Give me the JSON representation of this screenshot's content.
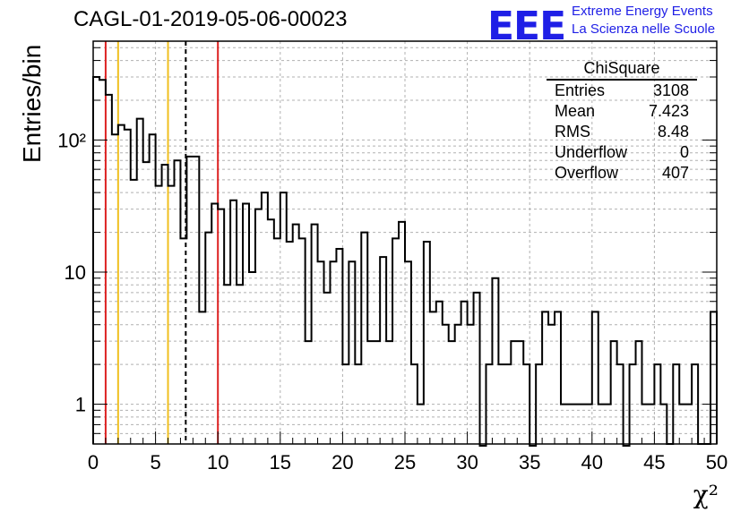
{
  "title": "CAGL-01-2019-05-06-00023",
  "logo": {
    "mark": "EEE",
    "line1": "Extreme Energy Events",
    "line2": "La Scienza nelle Scuole",
    "color": "#1f1fe6"
  },
  "stats": {
    "name": "ChiSquare",
    "rows": [
      {
        "label": "Entries",
        "value": "3108"
      },
      {
        "label": "Mean",
        "value": "7.423"
      },
      {
        "label": "RMS",
        "value": "8.48"
      },
      {
        "label": "Underflow",
        "value": "0"
      },
      {
        "label": "Overflow",
        "value": "407"
      }
    ]
  },
  "chart_data": {
    "type": "bar",
    "histogram": true,
    "title": "CAGL-01-2019-05-06-00023",
    "xlabel": "χ²",
    "ylabel": "Entries/bin",
    "xlim": [
      0,
      50
    ],
    "ylim": [
      0.5,
      560
    ],
    "log_y": true,
    "grid": true,
    "bin_width": 0.5,
    "xticks": [
      0,
      5,
      10,
      15,
      20,
      25,
      30,
      35,
      40,
      45,
      50
    ],
    "yticks": [
      {
        "value": 1,
        "label": "1"
      },
      {
        "value": 10,
        "label": "10"
      },
      {
        "value": 100,
        "label": "10²"
      }
    ],
    "values": [
      300,
      285,
      220,
      110,
      130,
      120,
      50,
      145,
      68,
      110,
      45,
      65,
      45,
      70,
      18,
      75,
      75,
      5,
      20,
      33,
      30,
      8,
      35,
      8,
      33,
      10,
      30,
      40,
      25,
      18,
      40,
      17,
      23,
      18,
      3,
      23,
      12,
      7,
      12,
      15,
      2,
      12,
      2,
      20,
      3,
      3,
      13,
      3,
      18,
      24,
      12,
      2,
      1,
      17,
      5,
      6,
      4,
      3,
      4,
      6,
      4,
      7,
      0,
      2,
      9,
      2,
      2,
      3,
      3,
      2,
      0,
      2,
      5,
      4,
      5,
      1,
      1,
      1,
      1,
      1,
      5,
      1,
      1,
      3,
      2,
      0,
      2,
      3,
      1,
      1,
      2,
      1,
      0.3,
      2,
      1,
      1,
      2,
      0.3,
      0.3,
      5
    ],
    "markers": [
      {
        "x": 1,
        "color": "#dd2222",
        "style": "solid"
      },
      {
        "x": 2,
        "color": "#f0c020",
        "style": "solid"
      },
      {
        "x": 6,
        "color": "#f0c020",
        "style": "solid"
      },
      {
        "x": 7.423,
        "color": "#000000",
        "style": "dashed"
      },
      {
        "x": 10,
        "color": "#dd2222",
        "style": "solid"
      }
    ]
  }
}
